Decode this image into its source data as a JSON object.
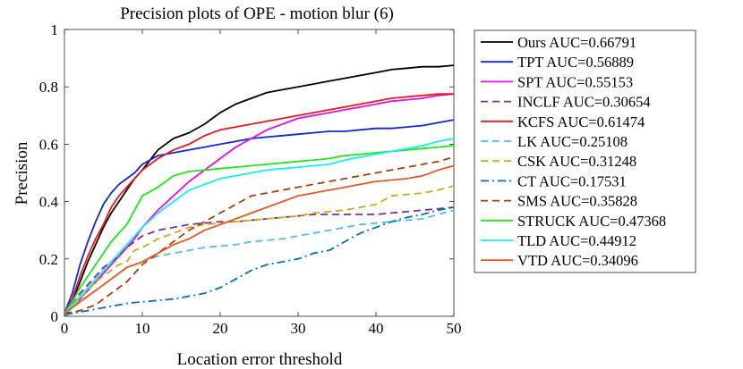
{
  "chart_data": {
    "type": "line",
    "title": "Precision plots of OPE - motion blur (6)",
    "xlabel": "Location error threshold",
    "ylabel": "Precision",
    "xlim": [
      0,
      50
    ],
    "ylim": [
      0,
      1
    ],
    "xticks": [
      0,
      10,
      20,
      30,
      40,
      50
    ],
    "yticks": [
      0,
      0.2,
      0.4,
      0.6,
      0.8,
      1
    ],
    "x": [
      0,
      1,
      2,
      3,
      4,
      5,
      6,
      7,
      8,
      9,
      10,
      12,
      14,
      16,
      18,
      20,
      22,
      24,
      26,
      28,
      30,
      32,
      34,
      36,
      38,
      40,
      42,
      44,
      46,
      48,
      50
    ],
    "legend_position": "outside-right",
    "series": [
      {
        "name": "Ours",
        "label": "Ours AUC=0.66791",
        "color": "#000000",
        "dash": "solid",
        "values": [
          0.01,
          0.05,
          0.12,
          0.19,
          0.25,
          0.31,
          0.36,
          0.4,
          0.44,
          0.48,
          0.51,
          0.58,
          0.62,
          0.64,
          0.67,
          0.71,
          0.74,
          0.76,
          0.78,
          0.79,
          0.8,
          0.81,
          0.82,
          0.83,
          0.84,
          0.85,
          0.86,
          0.865,
          0.87,
          0.87,
          0.875
        ]
      },
      {
        "name": "TPT",
        "label": "TPT AUC=0.56889",
        "color": "#1226d6",
        "dash": "solid",
        "values": [
          0.01,
          0.08,
          0.18,
          0.26,
          0.33,
          0.39,
          0.43,
          0.46,
          0.48,
          0.5,
          0.53,
          0.56,
          0.57,
          0.58,
          0.59,
          0.6,
          0.61,
          0.62,
          0.625,
          0.63,
          0.635,
          0.64,
          0.645,
          0.645,
          0.65,
          0.655,
          0.655,
          0.66,
          0.665,
          0.675,
          0.685
        ]
      },
      {
        "name": "SPT",
        "label": "SPT AUC=0.55153",
        "color": "#e40ee4",
        "dash": "solid",
        "values": [
          0.01,
          0.03,
          0.06,
          0.09,
          0.12,
          0.15,
          0.18,
          0.21,
          0.24,
          0.27,
          0.31,
          0.37,
          0.42,
          0.47,
          0.51,
          0.55,
          0.59,
          0.62,
          0.65,
          0.67,
          0.69,
          0.7,
          0.71,
          0.72,
          0.73,
          0.74,
          0.75,
          0.755,
          0.76,
          0.77,
          0.775
        ]
      },
      {
        "name": "INCLF",
        "label": "INCLF AUC=0.30654",
        "color": "#7e2f8e",
        "dash": "dash",
        "values": [
          0.01,
          0.04,
          0.08,
          0.11,
          0.14,
          0.17,
          0.19,
          0.21,
          0.24,
          0.26,
          0.28,
          0.3,
          0.31,
          0.32,
          0.325,
          0.33,
          0.33,
          0.335,
          0.34,
          0.345,
          0.35,
          0.355,
          0.355,
          0.355,
          0.355,
          0.355,
          0.36,
          0.365,
          0.37,
          0.375,
          0.38
        ]
      },
      {
        "name": "KCFS",
        "label": "KCFS AUC=0.61474",
        "color": "#e31a1c",
        "dash": "solid",
        "values": [
          0.01,
          0.06,
          0.14,
          0.21,
          0.27,
          0.32,
          0.38,
          0.42,
          0.45,
          0.48,
          0.51,
          0.55,
          0.58,
          0.6,
          0.63,
          0.65,
          0.66,
          0.67,
          0.68,
          0.69,
          0.7,
          0.71,
          0.72,
          0.73,
          0.74,
          0.75,
          0.76,
          0.765,
          0.77,
          0.775,
          0.775
        ]
      },
      {
        "name": "LK",
        "label": "LK AUC=0.25108",
        "color": "#4dbeee",
        "dash": "dash",
        "values": [
          0.01,
          0.03,
          0.05,
          0.07,
          0.09,
          0.11,
          0.13,
          0.15,
          0.17,
          0.18,
          0.19,
          0.21,
          0.22,
          0.23,
          0.24,
          0.245,
          0.25,
          0.26,
          0.265,
          0.27,
          0.28,
          0.29,
          0.3,
          0.31,
          0.32,
          0.325,
          0.33,
          0.335,
          0.34,
          0.355,
          0.37
        ]
      },
      {
        "name": "CSK",
        "label": "CSK AUC=0.31248",
        "color": "#c9ad16",
        "dash": "dash",
        "values": [
          0.01,
          0.03,
          0.06,
          0.09,
          0.12,
          0.14,
          0.16,
          0.18,
          0.19,
          0.23,
          0.24,
          0.27,
          0.29,
          0.31,
          0.32,
          0.325,
          0.33,
          0.335,
          0.34,
          0.345,
          0.35,
          0.36,
          0.365,
          0.37,
          0.38,
          0.39,
          0.42,
          0.425,
          0.43,
          0.44,
          0.455
        ]
      },
      {
        "name": "CT",
        "label": "CT AUC=0.17531",
        "color": "#0070c0",
        "dash": "dashdot",
        "values": [
          0.005,
          0.01,
          0.015,
          0.02,
          0.025,
          0.03,
          0.035,
          0.04,
          0.045,
          0.048,
          0.05,
          0.055,
          0.06,
          0.07,
          0.08,
          0.1,
          0.13,
          0.16,
          0.18,
          0.19,
          0.2,
          0.22,
          0.23,
          0.26,
          0.29,
          0.31,
          0.33,
          0.345,
          0.355,
          0.37,
          0.38
        ]
      },
      {
        "name": "SMS",
        "label": "SMS AUC=0.35828",
        "color": "#a0400e",
        "dash": "dash",
        "values": [
          0.01,
          0.015,
          0.02,
          0.03,
          0.04,
          0.06,
          0.08,
          0.1,
          0.12,
          0.15,
          0.18,
          0.22,
          0.26,
          0.3,
          0.33,
          0.36,
          0.39,
          0.42,
          0.43,
          0.44,
          0.45,
          0.46,
          0.47,
          0.48,
          0.49,
          0.5,
          0.51,
          0.52,
          0.53,
          0.54,
          0.555
        ]
      },
      {
        "name": "STRUCK",
        "label": "STRUCK AUC=0.47368",
        "color": "#1ce81c",
        "dash": "solid",
        "values": [
          0.01,
          0.05,
          0.1,
          0.14,
          0.18,
          0.22,
          0.26,
          0.29,
          0.32,
          0.37,
          0.42,
          0.45,
          0.49,
          0.505,
          0.51,
          0.515,
          0.52,
          0.525,
          0.53,
          0.535,
          0.54,
          0.545,
          0.55,
          0.56,
          0.565,
          0.57,
          0.575,
          0.58,
          0.585,
          0.59,
          0.595
        ]
      },
      {
        "name": "TLD",
        "label": "TLD AUC=0.44912",
        "color": "#14f0f0",
        "dash": "solid",
        "values": [
          0.01,
          0.04,
          0.07,
          0.1,
          0.13,
          0.16,
          0.19,
          0.22,
          0.25,
          0.28,
          0.31,
          0.36,
          0.4,
          0.44,
          0.46,
          0.48,
          0.49,
          0.5,
          0.51,
          0.515,
          0.52,
          0.525,
          0.53,
          0.545,
          0.555,
          0.565,
          0.575,
          0.585,
          0.595,
          0.61,
          0.62
        ]
      },
      {
        "name": "VTD",
        "label": "VTD AUC=0.34096",
        "color": "#e35a25",
        "dash": "solid",
        "values": [
          0.01,
          0.03,
          0.05,
          0.07,
          0.09,
          0.11,
          0.13,
          0.15,
          0.17,
          0.18,
          0.19,
          0.22,
          0.25,
          0.27,
          0.3,
          0.32,
          0.34,
          0.36,
          0.38,
          0.4,
          0.42,
          0.43,
          0.44,
          0.45,
          0.46,
          0.47,
          0.475,
          0.48,
          0.49,
          0.51,
          0.525
        ]
      }
    ]
  }
}
